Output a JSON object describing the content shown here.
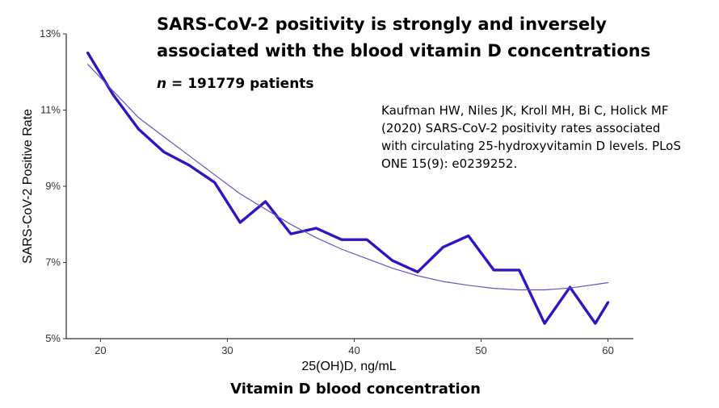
{
  "headline": {
    "line1": "SARS-CoV-2 positivity is strongly and inversely",
    "line2": "associated with the blood vitamin D concentrations"
  },
  "sample": {
    "n_label": "n",
    "n_text": " = 191779 patients"
  },
  "citation": {
    "lines": [
      "Kaufman HW, Niles JK, Kroll MH, Bi C, Holick MF",
      "(2020) SARS-CoV-2 positivity rates associated",
      "with circulating 25-hydroxyvitamin D levels. PLoS",
      "ONE 15(9): e0239252."
    ]
  },
  "caption": "Vitamin D blood concentration",
  "chart_data": {
    "type": "line",
    "xlabel": "25(OH)D, ng/mL",
    "ylabel": "SARS-CoV-2 Positive Rate",
    "xlim": [
      17.3,
      62
    ],
    "ylim": [
      5,
      13
    ],
    "xticks": [
      20,
      30,
      40,
      50,
      60
    ],
    "yticks": [
      5,
      7,
      9,
      11,
      13
    ],
    "ytick_labels": [
      "5%",
      "7%",
      "9%",
      "11%",
      "13%"
    ],
    "grid": false,
    "legend": "none",
    "series": [
      {
        "color": "#2a17c3",
        "x": [
          19,
          21,
          23,
          25,
          27,
          29,
          31,
          33,
          35,
          37,
          39,
          41,
          43,
          45,
          47,
          49,
          51,
          53,
          55,
          57,
          59,
          60
        ],
        "y": [
          12.5,
          11.4,
          10.5,
          9.9,
          9.55,
          9.1,
          8.05,
          8.6,
          7.75,
          7.9,
          7.6,
          7.6,
          7.05,
          6.75,
          7.4,
          7.7,
          6.8,
          6.8,
          5.4,
          6.35,
          5.4,
          5.95
        ]
      },
      {
        "color": "#5f55c8",
        "x": [
          19,
          21,
          23,
          25,
          27,
          29,
          31,
          33,
          35,
          37,
          39,
          41,
          43,
          45,
          47,
          49,
          51,
          53,
          55,
          57,
          59,
          60
        ],
        "y": [
          12.2,
          11.5,
          10.8,
          10.3,
          9.8,
          9.3,
          8.8,
          8.4,
          8.0,
          7.65,
          7.35,
          7.1,
          6.85,
          6.65,
          6.5,
          6.4,
          6.32,
          6.28,
          6.28,
          6.33,
          6.42,
          6.47
        ]
      }
    ]
  }
}
